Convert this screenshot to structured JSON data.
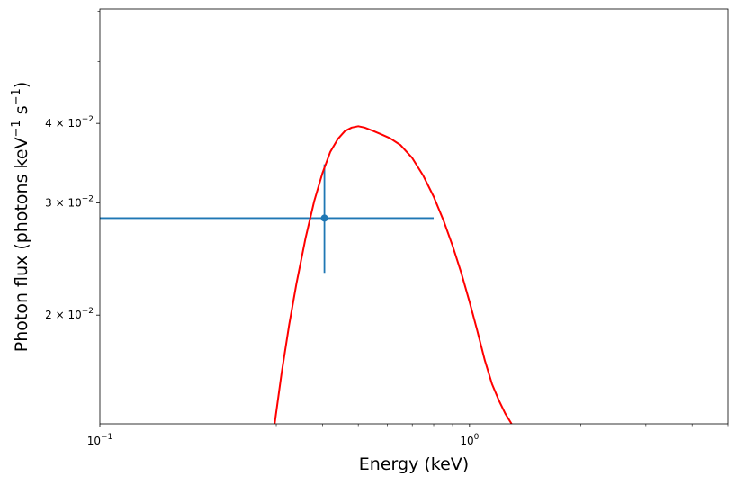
{
  "chart_data": {
    "type": "line",
    "title": "",
    "xlabel": "Energy (keV)",
    "ylabel_parts": {
      "base": "Photon flux (photons keV",
      "exp1": "−1",
      "mid": " s",
      "exp2": "−1",
      "end": ")"
    },
    "xscale": "log",
    "yscale": "log",
    "xlim": [
      0.1,
      5.0
    ],
    "ylim": [
      0.0135,
      0.0605
    ],
    "grid": false,
    "legend": "none",
    "x_ticks": [
      {
        "value": 0.1,
        "base": "10",
        "exp": "−1"
      },
      {
        "value": 1.0,
        "base": "10",
        "exp": "0"
      }
    ],
    "y_ticks": [
      {
        "value": 0.02,
        "mant": "2",
        "base": "10",
        "exp": "−2"
      },
      {
        "value": 0.03,
        "mant": "3",
        "base": "10",
        "exp": "−2"
      },
      {
        "value": 0.04,
        "mant": "4",
        "base": "10",
        "exp": "−2"
      }
    ],
    "x_minor_ticks": [
      0.2,
      0.3,
      0.4,
      0.5,
      0.6,
      0.7,
      0.8,
      0.9,
      2,
      3,
      4,
      5
    ],
    "y_minor_ticks": [
      0.05,
      0.06
    ],
    "series": [
      {
        "kind": "errorbar",
        "color": "#1f77b4",
        "points": [
          {
            "x": 0.405,
            "y": 0.0284,
            "xerr_low": 0.1,
            "xerr_high": 0.8,
            "yerr_low": 0.0233,
            "yerr_high": 0.0345
          }
        ]
      },
      {
        "kind": "model",
        "color": "#ff0000",
        "x": [
          0.297,
          0.31,
          0.325,
          0.34,
          0.36,
          0.38,
          0.4,
          0.42,
          0.44,
          0.46,
          0.48,
          0.5,
          0.52,
          0.55,
          0.58,
          0.61,
          0.65,
          0.7,
          0.75,
          0.8,
          0.85,
          0.9,
          0.95,
          1.0,
          1.05,
          1.1,
          1.15,
          1.2,
          1.25,
          1.3
        ],
        "y": [
          0.0135,
          0.0162,
          0.0193,
          0.0224,
          0.0264,
          0.0302,
          0.0334,
          0.0361,
          0.0378,
          0.0389,
          0.0394,
          0.0396,
          0.0394,
          0.0389,
          0.0384,
          0.0379,
          0.037,
          0.0353,
          0.0331,
          0.0307,
          0.0282,
          0.0257,
          0.0233,
          0.021,
          0.0189,
          0.017,
          0.0156,
          0.0147,
          0.014,
          0.0135
        ]
      }
    ]
  }
}
